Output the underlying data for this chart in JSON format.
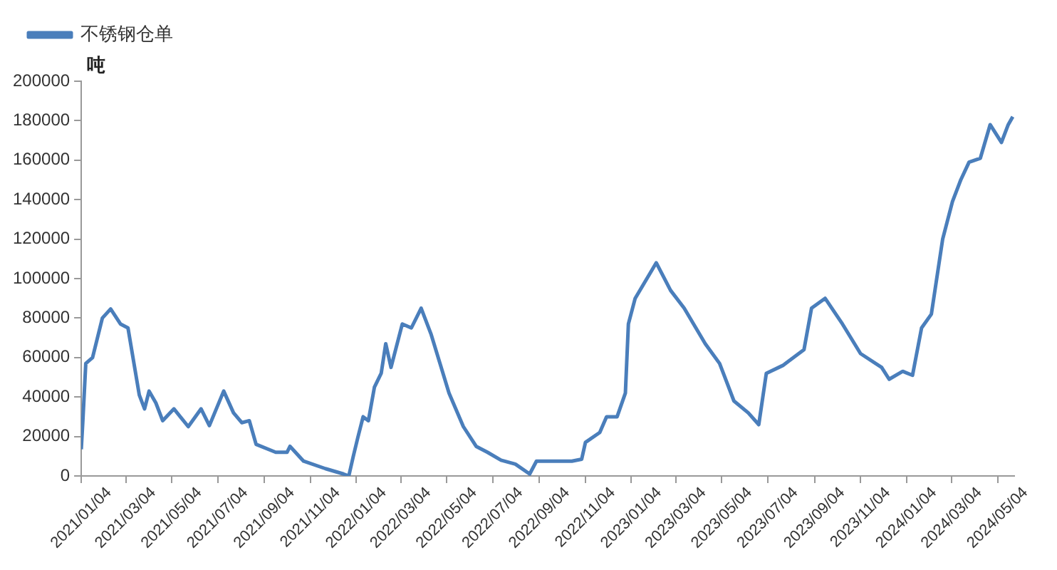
{
  "chart_data": {
    "type": "line",
    "ylabel": "吨",
    "legend": "top left",
    "grid": false,
    "marker": "none",
    "line_style": "solid",
    "xlim": [
      "2021-01-04",
      "2024-05-26"
    ],
    "xticks": [
      {
        "value": "2021-01-04",
        "label": "2021/01/04"
      },
      {
        "value": "2021-03-04",
        "label": "2021/03/04"
      },
      {
        "value": "2021-05-04",
        "label": "2021/05/04"
      },
      {
        "value": "2021-07-04",
        "label": "2021/07/04"
      },
      {
        "value": "2021-09-04",
        "label": "2021/09/04"
      },
      {
        "value": "2021-11-04",
        "label": "2021/11/04"
      },
      {
        "value": "2022-01-04",
        "label": "2022/01/04"
      },
      {
        "value": "2022-03-04",
        "label": "2022/03/04"
      },
      {
        "value": "2022-05-04",
        "label": "2022/05/04"
      },
      {
        "value": "2022-07-04",
        "label": "2022/07/04"
      },
      {
        "value": "2022-09-04",
        "label": "2022/09/04"
      },
      {
        "value": "2022-11-04",
        "label": "2022/11/04"
      },
      {
        "value": "2023-01-04",
        "label": "2023/01/04"
      },
      {
        "value": "2023-03-04",
        "label": "2023/03/04"
      },
      {
        "value": "2023-05-04",
        "label": "2023/05/04"
      },
      {
        "value": "2023-07-04",
        "label": "2023/07/04"
      },
      {
        "value": "2023-09-04",
        "label": "2023/09/04"
      },
      {
        "value": "2023-11-04",
        "label": "2023/11/04"
      },
      {
        "value": "2024-01-04",
        "label": "2024/01/04"
      },
      {
        "value": "2024-03-04",
        "label": "2024/03/04"
      },
      {
        "value": "2024-05-04",
        "label": "2024/05/04"
      }
    ],
    "ylim": [
      0,
      200000
    ],
    "yticks": [
      0,
      20000,
      40000,
      60000,
      80000,
      100000,
      120000,
      140000,
      160000,
      180000,
      200000
    ],
    "x": [
      "2021-01-04",
      "2021-01-06",
      "2021-01-10",
      "2021-01-19",
      "2021-02-01",
      "2021-02-12",
      "2021-02-25",
      "2021-03-07",
      "2021-03-22",
      "2021-03-29",
      "2021-04-04",
      "2021-04-13",
      "2021-04-22",
      "2021-05-07",
      "2021-05-26",
      "2021-06-12",
      "2021-06-23",
      "2021-07-12",
      "2021-07-25",
      "2021-08-05",
      "2021-08-15",
      "2021-08-24",
      "2021-09-19",
      "2021-10-04",
      "2021-10-08",
      "2021-10-26",
      "2021-11-24",
      "2021-12-18",
      "2021-12-25",
      "2021-12-31",
      "2022-01-06",
      "2022-01-13",
      "2022-01-20",
      "2022-01-28",
      "2022-02-06",
      "2022-02-12",
      "2022-02-19",
      "2022-03-06",
      "2022-03-18",
      "2022-03-31",
      "2022-04-13",
      "2022-05-07",
      "2022-05-26",
      "2022-06-12",
      "2022-06-27",
      "2022-07-15",
      "2022-08-03",
      "2022-08-22",
      "2022-08-31",
      "2022-10-17",
      "2022-10-30",
      "2022-11-04",
      "2022-11-23",
      "2022-12-02",
      "2022-12-16",
      "2022-12-27",
      "2022-12-31",
      "2023-01-09",
      "2023-02-06",
      "2023-02-25",
      "2023-03-15",
      "2023-04-12",
      "2023-05-01",
      "2023-05-20",
      "2023-06-08",
      "2023-06-22",
      "2023-07-02",
      "2023-07-24",
      "2023-08-21",
      "2023-08-31",
      "2023-09-18",
      "2023-10-11",
      "2023-11-04",
      "2023-12-02",
      "2023-12-12",
      "2023-12-30",
      "2024-01-12",
      "2024-01-24",
      "2024-02-06",
      "2024-02-21",
      "2024-03-05",
      "2024-03-16",
      "2024-03-27",
      "2024-04-11",
      "2024-04-24",
      "2024-05-09",
      "2024-05-18",
      "2024-05-24"
    ],
    "series": [
      {
        "name": "不锈钢仓单",
        "color": "#4a7ebb",
        "values": [
          13500,
          27000,
          57000,
          60000,
          80000,
          84600,
          77000,
          75000,
          41000,
          34000,
          43000,
          37000,
          28000,
          34000,
          25000,
          34000,
          25500,
          43000,
          32000,
          27000,
          28000,
          16000,
          12000,
          12000,
          15000,
          7500,
          3700,
          1000,
          0,
          10000,
          19500,
          30000,
          28000,
          45000,
          52000,
          67000,
          55000,
          77000,
          75000,
          85000,
          72000,
          42000,
          25000,
          15000,
          12000,
          8000,
          6000,
          1000,
          7500,
          7500,
          8500,
          17000,
          22000,
          30000,
          30000,
          42000,
          77000,
          90000,
          108000,
          94000,
          85000,
          67000,
          57000,
          38000,
          32000,
          26000,
          52000,
          56000,
          64000,
          85000,
          90000,
          77000,
          62000,
          55000,
          49000,
          53000,
          51000,
          75000,
          82000,
          120000,
          139000,
          150000,
          159000,
          161000,
          178000,
          169000,
          178000,
          182000
        ]
      }
    ]
  }
}
